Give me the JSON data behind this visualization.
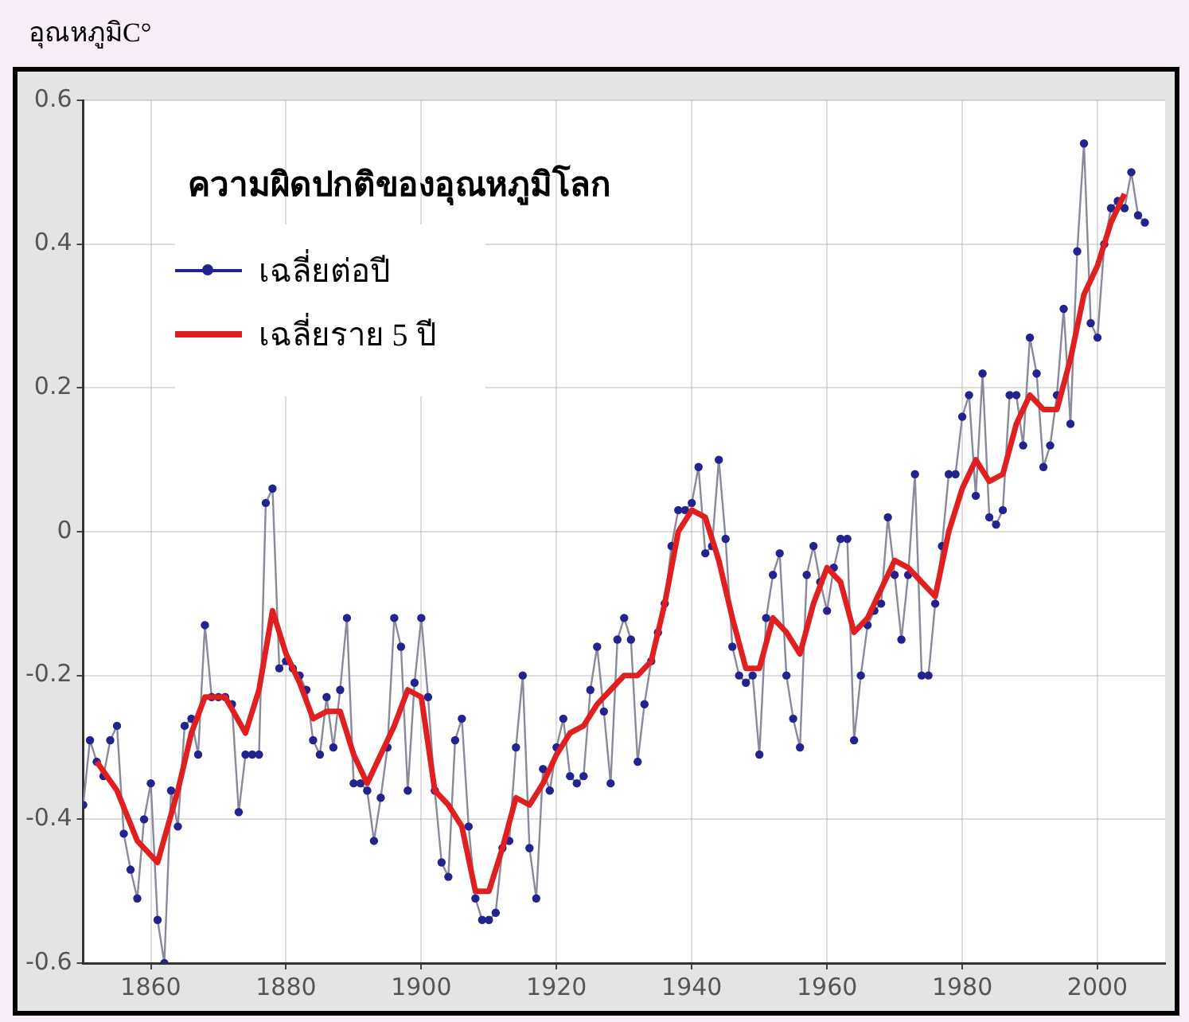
{
  "chart_data": {
    "type": "line",
    "title": "ความผิดปกติของอุณหภูมิโลก",
    "ylabel": "อุณหภูมิC°",
    "xlim": [
      1850,
      2010
    ],
    "xticks": [
      1860,
      1880,
      1900,
      1920,
      1940,
      1960,
      1980,
      2000
    ],
    "ylim": [
      -0.6,
      0.6
    ],
    "yticks": [
      -0.6,
      -0.4,
      -0.2,
      0,
      0.2,
      0.4,
      0.6
    ],
    "grid": true,
    "legend": "top left",
    "series": [
      {
        "name": "เฉลี่ยต่อปี",
        "color": "#23238f",
        "marker": "circle",
        "x": [
          1850,
          1851,
          1852,
          1853,
          1854,
          1855,
          1856,
          1857,
          1858,
          1859,
          1860,
          1861,
          1862,
          1863,
          1864,
          1865,
          1866,
          1867,
          1868,
          1869,
          1870,
          1871,
          1872,
          1873,
          1874,
          1875,
          1876,
          1877,
          1878,
          1879,
          1880,
          1881,
          1882,
          1883,
          1884,
          1885,
          1886,
          1887,
          1888,
          1889,
          1890,
          1891,
          1892,
          1893,
          1894,
          1895,
          1896,
          1897,
          1898,
          1899,
          1900,
          1901,
          1902,
          1903,
          1904,
          1905,
          1906,
          1907,
          1908,
          1909,
          1910,
          1911,
          1912,
          1913,
          1914,
          1915,
          1916,
          1917,
          1918,
          1919,
          1920,
          1921,
          1922,
          1923,
          1924,
          1925,
          1926,
          1927,
          1928,
          1929,
          1930,
          1931,
          1932,
          1933,
          1934,
          1935,
          1936,
          1937,
          1938,
          1939,
          1940,
          1941,
          1942,
          1943,
          1944,
          1945,
          1946,
          1947,
          1948,
          1949,
          1950,
          1951,
          1952,
          1953,
          1954,
          1955,
          1956,
          1957,
          1958,
          1959,
          1960,
          1961,
          1962,
          1963,
          1964,
          1965,
          1966,
          1967,
          1968,
          1969,
          1970,
          1971,
          1972,
          1973,
          1974,
          1975,
          1976,
          1977,
          1978,
          1979,
          1980,
          1981,
          1982,
          1983,
          1984,
          1985,
          1986,
          1987,
          1988,
          1989,
          1990,
          1991,
          1992,
          1993,
          1994,
          1995,
          1996,
          1997,
          1998,
          1999,
          2000,
          2001,
          2002,
          2003,
          2004,
          2005,
          2006,
          2007
        ],
        "values": [
          -0.38,
          -0.29,
          -0.32,
          -0.34,
          -0.29,
          -0.27,
          -0.42,
          -0.47,
          -0.51,
          -0.4,
          -0.35,
          -0.54,
          -0.6,
          -0.36,
          -0.41,
          -0.27,
          -0.26,
          -0.31,
          -0.13,
          -0.23,
          -0.23,
          -0.23,
          -0.24,
          -0.39,
          -0.31,
          -0.31,
          -0.31,
          0.04,
          0.06,
          -0.19,
          -0.18,
          -0.19,
          -0.2,
          -0.22,
          -0.29,
          -0.31,
          -0.23,
          -0.3,
          -0.22,
          -0.12,
          -0.35,
          -0.35,
          -0.36,
          -0.43,
          -0.37,
          -0.3,
          -0.12,
          -0.16,
          -0.36,
          -0.21,
          -0.12,
          -0.23,
          -0.36,
          -0.46,
          -0.48,
          -0.29,
          -0.26,
          -0.41,
          -0.51,
          -0.54,
          -0.54,
          -0.53,
          -0.44,
          -0.43,
          -0.3,
          -0.2,
          -0.44,
          -0.51,
          -0.33,
          -0.36,
          -0.3,
          -0.26,
          -0.34,
          -0.35,
          -0.34,
          -0.22,
          -0.16,
          -0.25,
          -0.35,
          -0.15,
          -0.12,
          -0.15,
          -0.32,
          -0.24,
          -0.18,
          -0.14,
          -0.1,
          -0.02,
          0.03,
          0.03,
          0.04,
          0.09,
          -0.03,
          -0.02,
          0.1,
          -0.01,
          -0.16,
          -0.2,
          -0.21,
          -0.2,
          -0.31,
          -0.12,
          -0.06,
          -0.03,
          -0.2,
          -0.26,
          -0.3,
          -0.06,
          -0.02,
          -0.07,
          -0.11,
          -0.05,
          -0.01,
          -0.01,
          -0.29,
          -0.2,
          -0.13,
          -0.11,
          -0.1,
          0.02,
          -0.06,
          -0.15,
          -0.06,
          0.08,
          -0.2,
          -0.2,
          -0.1,
          -0.02,
          0.08,
          0.08,
          0.16,
          0.19,
          0.05,
          0.22,
          0.02,
          0.01,
          0.03,
          0.19,
          0.19,
          0.12,
          0.27,
          0.22,
          0.09,
          0.12,
          0.19,
          0.31,
          0.15,
          0.39,
          0.54,
          0.29,
          0.27,
          0.4,
          0.45,
          0.46,
          0.45,
          0.5,
          0.44,
          0.43
        ]
      },
      {
        "name": "เฉลี่ยราย 5 ปี",
        "color": "#e02020",
        "marker": "none",
        "x": [
          1852,
          1855,
          1858,
          1861,
          1864,
          1866,
          1868,
          1871,
          1874,
          1876,
          1878,
          1880,
          1882,
          1884,
          1886,
          1888,
          1890,
          1892,
          1894,
          1896,
          1898,
          1900,
          1902,
          1904,
          1906,
          1908,
          1910,
          1912,
          1914,
          1916,
          1918,
          1920,
          1922,
          1924,
          1926,
          1928,
          1930,
          1932,
          1934,
          1936,
          1938,
          1940,
          1942,
          1944,
          1946,
          1948,
          1950,
          1952,
          1954,
          1956,
          1958,
          1960,
          1962,
          1964,
          1966,
          1968,
          1970,
          1972,
          1974,
          1976,
          1978,
          1980,
          1982,
          1984,
          1986,
          1988,
          1990,
          1992,
          1994,
          1996,
          1998,
          2000,
          2002,
          2004
        ],
        "values": [
          -0.32,
          -0.36,
          -0.43,
          -0.46,
          -0.36,
          -0.28,
          -0.23,
          -0.23,
          -0.28,
          -0.22,
          -0.11,
          -0.17,
          -0.21,
          -0.26,
          -0.25,
          -0.25,
          -0.31,
          -0.35,
          -0.31,
          -0.27,
          -0.22,
          -0.23,
          -0.36,
          -0.38,
          -0.41,
          -0.5,
          -0.5,
          -0.44,
          -0.37,
          -0.38,
          -0.35,
          -0.31,
          -0.28,
          -0.27,
          -0.24,
          -0.22,
          -0.2,
          -0.2,
          -0.18,
          -0.1,
          0,
          0.03,
          0.02,
          -0.04,
          -0.12,
          -0.19,
          -0.19,
          -0.12,
          -0.14,
          -0.17,
          -0.1,
          -0.05,
          -0.07,
          -0.14,
          -0.12,
          -0.08,
          -0.04,
          -0.05,
          -0.07,
          -0.09,
          0,
          0.06,
          0.1,
          0.07,
          0.08,
          0.15,
          0.19,
          0.17,
          0.17,
          0.24,
          0.33,
          0.37,
          0.43,
          0.47
        ]
      }
    ]
  }
}
